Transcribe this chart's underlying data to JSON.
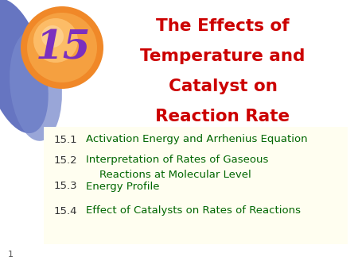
{
  "title_lines": [
    "The Effects of",
    "Temperature and",
    "Catalyst on",
    "Reaction Rate"
  ],
  "title_color": "#cc0000",
  "chapter_num": "15",
  "chapter_num_color": "#7b2fbe",
  "bg_color": "#ffffff",
  "slide_border_color": "#a8c8d8",
  "content_bg_color": "#fffef0",
  "items": [
    {
      "num": "15.1",
      "text1": "Activation Energy and Arrhenius Equation",
      "text2": ""
    },
    {
      "num": "15.2",
      "text1": "Interpretation of Rates of Gaseous",
      "text2": "    Reactions at Molecular Level"
    },
    {
      "num": "15.3",
      "text1": "Energy Profile",
      "text2": ""
    },
    {
      "num": "15.4",
      "text1": "Effect of Catalysts on Rates of Reactions",
      "text2": ""
    }
  ],
  "item_num_color": "#333333",
  "item_text_color": "#006600",
  "page_num": "1",
  "orange_grad_inner": "#ffd0a0",
  "orange_grad_outer": "#f08020",
  "blue_color1": "#5566bb",
  "blue_color2": "#7788cc"
}
